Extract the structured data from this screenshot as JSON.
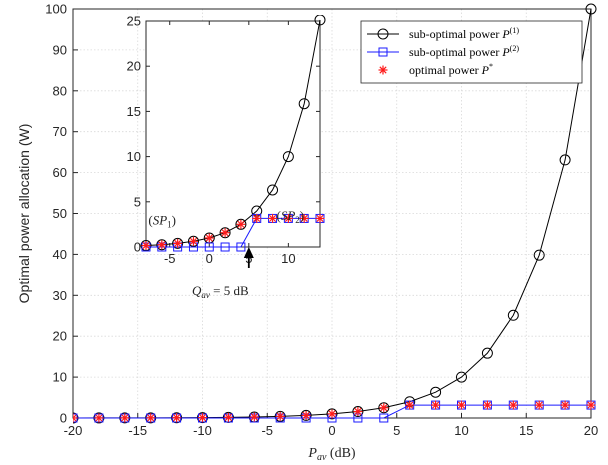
{
  "chart_data": [
    {
      "type": "line",
      "xlabel": "P_av (dB)",
      "ylabel": "Optimal power allocation (W)",
      "x": [
        -20,
        -18,
        -16,
        -14,
        -12,
        -10,
        -8,
        -6,
        -4,
        -2,
        0,
        2,
        4,
        6,
        8,
        10,
        12,
        14,
        16,
        18,
        20
      ],
      "xlim": [
        -20,
        20
      ],
      "ylim": [
        0,
        100
      ],
      "xticks": [
        "-20",
        "-15",
        "-10",
        "-5",
        "0",
        "5",
        "10",
        "15",
        "20"
      ],
      "yticks": [
        "0",
        "10",
        "20",
        "30",
        "40",
        "50",
        "60",
        "70",
        "80",
        "90",
        "100"
      ],
      "grid": true,
      "legend_position": "top-right",
      "series": [
        {
          "name": "sub-optimal power P^(1)",
          "color": "#000000",
          "marker": "circle",
          "values": [
            0.01,
            0.016,
            0.025,
            0.04,
            0.063,
            0.1,
            0.16,
            0.25,
            0.4,
            0.63,
            1.0,
            1.58,
            2.51,
            3.98,
            6.31,
            10.0,
            15.85,
            25.12,
            39.81,
            63.1,
            100.0
          ]
        },
        {
          "name": "sub-optimal power P^(2)",
          "color": "#1a1aff",
          "marker": "square",
          "values": [
            0,
            0,
            0,
            0,
            0,
            0,
            0,
            0,
            0,
            0,
            0,
            0,
            0,
            3.16,
            3.16,
            3.16,
            3.16,
            3.16,
            3.16,
            3.16,
            3.16
          ]
        },
        {
          "name": "optimal power P*",
          "color": "#ff1a1a",
          "marker": "asterisk",
          "values": [
            0.01,
            0.016,
            0.025,
            0.04,
            0.063,
            0.1,
            0.16,
            0.25,
            0.4,
            0.63,
            1.0,
            1.58,
            2.51,
            3.16,
            3.16,
            3.16,
            3.16,
            3.16,
            3.16,
            3.16,
            3.16
          ]
        }
      ]
    },
    {
      "type": "line",
      "role": "inset",
      "x": [
        -8,
        -6,
        -4,
        -2,
        0,
        2,
        4,
        6,
        8,
        10,
        12,
        14
      ],
      "xlim": [
        -8,
        14
      ],
      "ylim": [
        0,
        25
      ],
      "xticks": [
        "-5",
        "0",
        "5",
        "10"
      ],
      "yticks": [
        "0",
        "5",
        "10",
        "15",
        "20",
        "25"
      ],
      "series": [
        {
          "name": "sub-optimal power P^(1)",
          "values": [
            0.16,
            0.25,
            0.4,
            0.63,
            1.0,
            1.58,
            2.51,
            3.98,
            6.31,
            10.0,
            15.85,
            25.12
          ]
        },
        {
          "name": "sub-optimal power P^(2)",
          "values": [
            0,
            0,
            0,
            0,
            0,
            0,
            0,
            3.16,
            3.16,
            3.16,
            3.16,
            3.16
          ]
        },
        {
          "name": "optimal power P*",
          "values": [
            0.16,
            0.25,
            0.4,
            0.63,
            1.0,
            1.58,
            2.51,
            3.16,
            3.16,
            3.16,
            3.16,
            3.16
          ]
        }
      ],
      "annotations": [
        {
          "text": "(SP_1)",
          "x": -7.7,
          "y": 2.5
        },
        {
          "text": "(SP_2)",
          "x": 8.5,
          "y": 3.0
        },
        {
          "text": "Q_av = 5 dB",
          "x": 5,
          "y": 0,
          "arrow": true
        }
      ]
    }
  ]
}
